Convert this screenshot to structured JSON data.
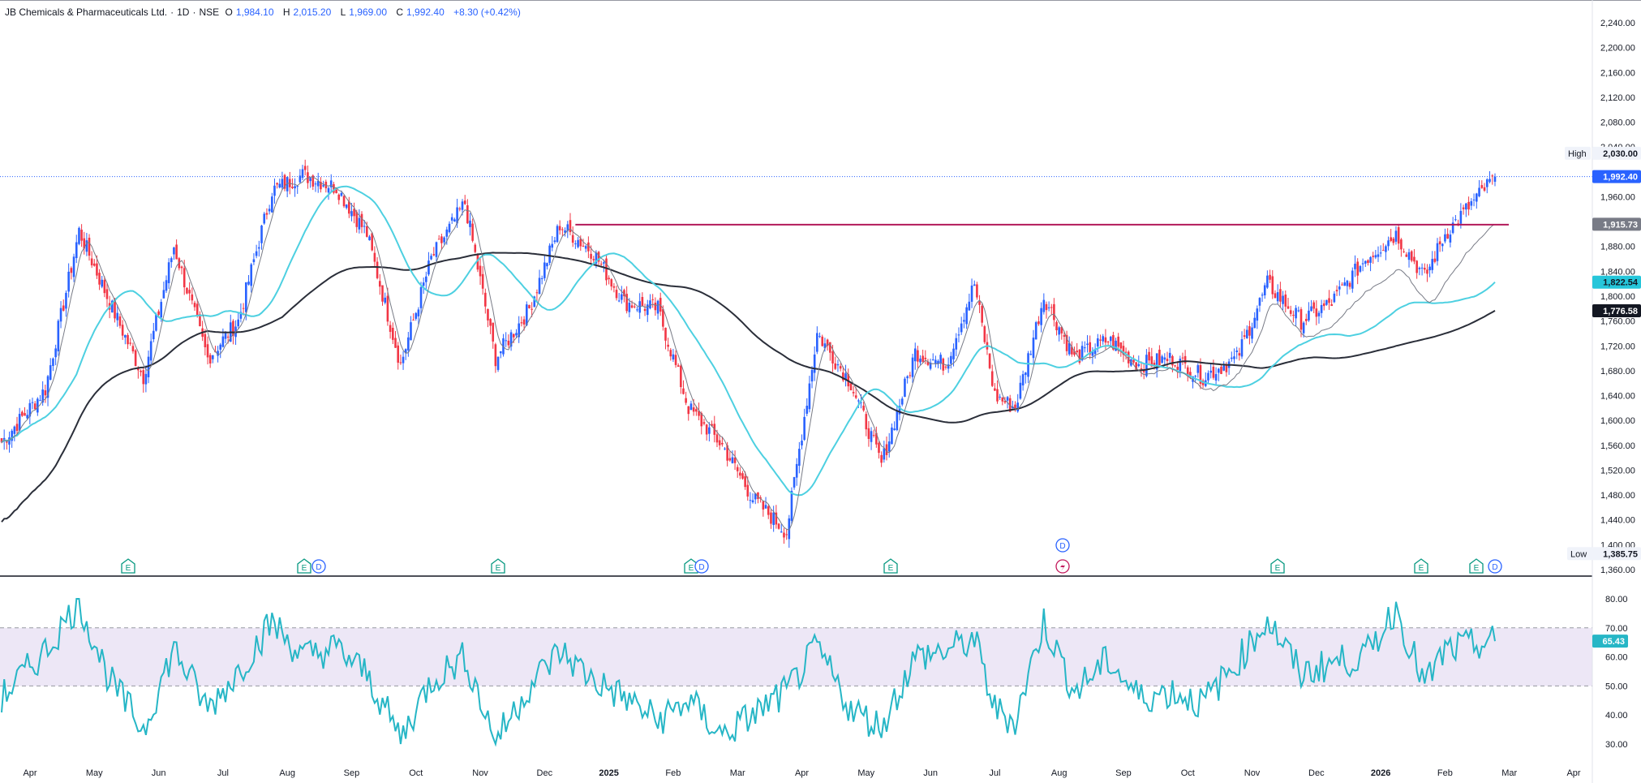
{
  "header": {
    "name": "JB Chemicals & Pharmaceuticals Ltd.",
    "interval": "1D",
    "exchange": "NSE",
    "open_label": "O",
    "open": "1,984.10",
    "high_label": "H",
    "high": "2,015.20",
    "low_label": "L",
    "low": "1,969.00",
    "close_label": "C",
    "close": "1,992.40",
    "change": "+8.30 (+0.42%)"
  },
  "colors": {
    "up": "#2962ff",
    "down": "#f23645",
    "ma_fast": "#787b86",
    "ma_mid": "#4dd0e1",
    "ma_slow": "#2a2e39",
    "resistance": "#b2195a",
    "rsi": "#26b6c6",
    "rsi_band": "#ede7f6",
    "earnings": "#089981",
    "dividend": "#2962ff",
    "split": "#c2185b"
  },
  "chart_data": [
    {
      "type": "candlestick",
      "title": "JB Chemicals & Pharmaceuticals Ltd. · 1D · NSE",
      "x_labels": [
        "Apr",
        "May",
        "Jun",
        "Jul",
        "Aug",
        "Sep",
        "Oct",
        "Nov",
        "Dec",
        "2025",
        "Feb",
        "Mar",
        "Apr",
        "May",
        "Jun",
        "Jul",
        "Aug",
        "Sep",
        "Oct",
        "Nov",
        "Dec",
        "2026",
        "Feb",
        "Mar",
        "Apr"
      ],
      "ylim": [
        1360,
        2240
      ],
      "y_ticks": [
        "2,240.00",
        "2,200.00",
        "2,160.00",
        "2,120.00",
        "2,080.00",
        "2,040.00",
        "1,960.00",
        "1,880.00",
        "1,840.00",
        "1,800.00",
        "1,760.00",
        "1,720.00",
        "1,680.00",
        "1,640.00",
        "1,600.00",
        "1,560.00",
        "1,520.00",
        "1,480.00",
        "1,440.00",
        "1,400.00",
        "1,360.00"
      ],
      "price_path": [
        [
          "Apr",
          1565
        ],
        [
          "Apr",
          1650
        ],
        [
          "May",
          1905
        ],
        [
          "May",
          1790
        ],
        [
          "Jun",
          1670
        ],
        [
          "Jun",
          1880
        ],
        [
          "Jul",
          1700
        ],
        [
          "Jul",
          1760
        ],
        [
          "Aug",
          1970
        ],
        [
          "Aug",
          1995
        ],
        [
          "Sep",
          1975
        ],
        [
          "Sep",
          1900
        ],
        [
          "Oct",
          1690
        ],
        [
          "Oct",
          1860
        ],
        [
          "Nov",
          1950
        ],
        [
          "Nov",
          1700
        ],
        [
          "Dec",
          1780
        ],
        [
          "Dec",
          1915
        ],
        [
          "2025",
          1870
        ],
        [
          "2025",
          1790
        ],
        [
          "Feb",
          1780
        ],
        [
          "Feb",
          1620
        ],
        [
          "Mar",
          1560
        ],
        [
          "Mar",
          1475
        ],
        [
          "Apr",
          1420
        ],
        [
          "Apr",
          1740
        ],
        [
          "May",
          1660
        ],
        [
          "May",
          1530
        ],
        [
          "Jun",
          1710
        ],
        [
          "Jun",
          1690
        ],
        [
          "Jul",
          1820
        ],
        [
          "Jul",
          1640
        ],
        [
          "Jul",
          1620
        ],
        [
          "Aug",
          1800
        ],
        [
          "Aug",
          1700
        ],
        [
          "Sep",
          1730
        ],
        [
          "Sep",
          1690
        ],
        [
          "Oct",
          1700
        ],
        [
          "Oct",
          1670
        ],
        [
          "Nov",
          1700
        ],
        [
          "Nov",
          1820
        ],
        [
          "Dec",
          1760
        ],
        [
          "Dec",
          1790
        ],
        [
          "2026",
          1860
        ],
        [
          "2026",
          1900
        ],
        [
          "Feb",
          1830
        ],
        [
          "Feb",
          1900
        ],
        [
          "Feb",
          1992
        ]
      ],
      "ohlc_last": {
        "open": 1984.1,
        "high": 2015.2,
        "low": 1969.0,
        "close": 1992.4
      },
      "indicators": [
        {
          "name": "MA fast",
          "last": 1915.73
        },
        {
          "name": "MA mid",
          "last": 1822.54
        },
        {
          "name": "MA slow",
          "last": 1776.58
        }
      ],
      "resistance_level": 1915,
      "price_labels": {
        "high_tag": "High",
        "high_value": "2,030.00",
        "last": "1,992.40",
        "ma_fast": "1,915.73",
        "ma_mid": "1,822.54",
        "ma_slow": "1,776.58",
        "low_tag": "Low",
        "low_value": "1,385.75"
      },
      "events": [
        {
          "type": "E",
          "at": "May"
        },
        {
          "type": "E",
          "at": "Aug"
        },
        {
          "type": "D",
          "at": "Aug"
        },
        {
          "type": "E",
          "at": "Nov"
        },
        {
          "type": "E",
          "at": "Feb"
        },
        {
          "type": "D",
          "at": "Feb"
        },
        {
          "type": "E",
          "at": "May"
        },
        {
          "type": "D",
          "at": "Aug"
        },
        {
          "type": "E",
          "at": "Aug"
        },
        {
          "type": "E",
          "at": "Nov"
        },
        {
          "type": "E",
          "at": "2026"
        },
        {
          "type": "D",
          "at": "Feb"
        },
        {
          "type": "split",
          "at": "Feb"
        }
      ],
      "grid": false,
      "legend": "top-left"
    },
    {
      "type": "line",
      "name": "RSI",
      "ylim": [
        30,
        80
      ],
      "y_ticks": [
        "80.00",
        "70.00",
        "60.00",
        "50.00",
        "40.00",
        "30.00"
      ],
      "band": [
        50,
        70
      ],
      "levels": [
        70,
        50
      ],
      "last": "65.43",
      "path": [
        [
          "Apr",
          46
        ],
        [
          "Apr",
          62
        ],
        [
          "May",
          79
        ],
        [
          "May",
          52
        ],
        [
          "Jun",
          35
        ],
        [
          "Jun",
          63
        ],
        [
          "Jul",
          42
        ],
        [
          "Jul",
          55
        ],
        [
          "Aug",
          72
        ],
        [
          "Aug",
          60
        ],
        [
          "Sep",
          63
        ],
        [
          "Sep",
          54
        ],
        [
          "Oct",
          32
        ],
        [
          "Oct",
          52
        ],
        [
          "Nov",
          60
        ],
        [
          "Nov",
          31
        ],
        [
          "Dec",
          50
        ],
        [
          "Dec",
          62
        ],
        [
          "2025",
          52
        ],
        [
          "2025",
          46
        ],
        [
          "Feb",
          38
        ],
        [
          "Feb",
          45
        ],
        [
          "Mar",
          33
        ],
        [
          "Mar",
          40
        ],
        [
          "Apr",
          48
        ],
        [
          "Apr",
          63
        ],
        [
          "May",
          42
        ],
        [
          "May",
          36
        ],
        [
          "Jun",
          60
        ],
        [
          "Jun",
          62
        ],
        [
          "Jul",
          66
        ],
        [
          "Jul",
          42
        ],
        [
          "Jul",
          38
        ],
        [
          "Aug",
          72
        ],
        [
          "Aug",
          48
        ],
        [
          "Sep",
          59
        ],
        [
          "Sep",
          46
        ],
        [
          "Oct",
          48
        ],
        [
          "Oct",
          44
        ],
        [
          "Nov",
          58
        ],
        [
          "Nov",
          73
        ],
        [
          "Dec",
          54
        ],
        [
          "Dec",
          58
        ],
        [
          "2026",
          60
        ],
        [
          "2026",
          77
        ],
        [
          "Feb",
          50
        ],
        [
          "Feb",
          62
        ],
        [
          "Feb",
          65.43
        ]
      ]
    }
  ]
}
